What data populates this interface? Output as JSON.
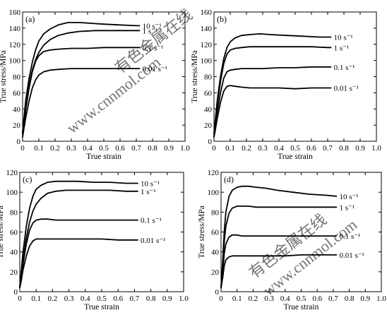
{
  "chart_data": [
    {
      "type": "line",
      "panel_label": "(a)",
      "xlabel": "True strain",
      "ylabel": "True stress/MPa",
      "xlim": [
        0,
        1.0
      ],
      "ylim": [
        0,
        160
      ],
      "xticks": [
        "0",
        "0.1",
        "0.2",
        "0.3",
        "0.4",
        "0.5",
        "0.6",
        "0.7",
        "0.8",
        "0.9",
        "1.0"
      ],
      "yticks": [
        "0",
        "20",
        "40",
        "60",
        "80",
        "100",
        "120",
        "140",
        "160"
      ],
      "series": [
        {
          "name": "10 s⁻¹",
          "x": [
            0,
            0.01,
            0.02,
            0.04,
            0.06,
            0.08,
            0.1,
            0.13,
            0.17,
            0.22,
            0.28,
            0.35,
            0.42,
            0.5,
            0.6,
            0.7,
            0.72
          ],
          "y": [
            12,
            32,
            52,
            78,
            98,
            113,
            124,
            133,
            139,
            144,
            147,
            147,
            146,
            145,
            144,
            143,
            143
          ]
        },
        {
          "name": "1 s⁻¹",
          "x": [
            0,
            0.01,
            0.02,
            0.04,
            0.06,
            0.08,
            0.1,
            0.13,
            0.17,
            0.22,
            0.28,
            0.35,
            0.45,
            0.55,
            0.65,
            0.72
          ],
          "y": [
            10,
            28,
            46,
            70,
            88,
            101,
            110,
            119,
            126,
            131,
            134,
            136,
            137,
            137,
            137,
            137
          ]
        },
        {
          "name": "0.1 s⁻¹",
          "x": [
            0,
            0.01,
            0.02,
            0.04,
            0.06,
            0.08,
            0.1,
            0.13,
            0.17,
            0.22,
            0.3,
            0.4,
            0.5,
            0.6,
            0.7,
            0.72
          ],
          "y": [
            8,
            24,
            40,
            66,
            86,
            99,
            106,
            111,
            113,
            114,
            115,
            115,
            116,
            116,
            116,
            116
          ]
        },
        {
          "name": "0.01 s⁻¹",
          "x": [
            0,
            0.01,
            0.02,
            0.04,
            0.06,
            0.08,
            0.1,
            0.13,
            0.17,
            0.22,
            0.3,
            0.4,
            0.5,
            0.6,
            0.7,
            0.72
          ],
          "y": [
            5,
            18,
            30,
            50,
            66,
            76,
            82,
            86,
            88,
            89,
            90,
            90,
            90,
            90,
            90,
            90
          ]
        }
      ]
    },
    {
      "type": "line",
      "panel_label": "(b)",
      "xlabel": "True strain",
      "ylabel": "True stress/MPa",
      "xlim": [
        0,
        1.0
      ],
      "ylim": [
        0,
        160
      ],
      "xticks": [
        "0",
        "0.1",
        "0.2",
        "0.3",
        "0.4",
        "0.5",
        "0.6",
        "0.7",
        "0.8",
        "0.9",
        "1.0"
      ],
      "yticks": [
        "0",
        "20",
        "40",
        "60",
        "80",
        "100",
        "120",
        "140",
        "160"
      ],
      "series": [
        {
          "name": "10 s⁻¹",
          "x": [
            0,
            0.01,
            0.02,
            0.04,
            0.06,
            0.08,
            0.1,
            0.13,
            0.17,
            0.22,
            0.28,
            0.35,
            0.45,
            0.55,
            0.65,
            0.72
          ],
          "y": [
            10,
            30,
            50,
            80,
            102,
            116,
            123,
            128,
            131,
            132,
            133,
            132,
            131,
            130,
            129,
            129
          ]
        },
        {
          "name": "1 s⁻¹",
          "x": [
            0,
            0.01,
            0.02,
            0.04,
            0.06,
            0.08,
            0.1,
            0.13,
            0.17,
            0.22,
            0.3,
            0.4,
            0.5,
            0.6,
            0.7,
            0.72
          ],
          "y": [
            8,
            26,
            46,
            74,
            96,
            108,
            113,
            115,
            116,
            117,
            117,
            117,
            117,
            117,
            116,
            116
          ]
        },
        {
          "name": "0.1 s⁻¹",
          "x": [
            0,
            0.01,
            0.02,
            0.04,
            0.06,
            0.08,
            0.1,
            0.13,
            0.17,
            0.22,
            0.3,
            0.4,
            0.5,
            0.6,
            0.7,
            0.72
          ],
          "y": [
            6,
            20,
            36,
            60,
            78,
            86,
            88,
            89,
            90,
            90,
            90,
            91,
            91,
            92,
            92,
            92
          ]
        },
        {
          "name": "0.01 s⁻¹",
          "x": [
            0,
            0.01,
            0.02,
            0.04,
            0.06,
            0.08,
            0.1,
            0.13,
            0.17,
            0.22,
            0.3,
            0.4,
            0.5,
            0.6,
            0.7,
            0.72
          ],
          "y": [
            5,
            16,
            28,
            48,
            62,
            68,
            69,
            68,
            67,
            66,
            66,
            66,
            65,
            66,
            66,
            66
          ]
        }
      ]
    },
    {
      "type": "line",
      "panel_label": "(c)",
      "xlabel": "True strain",
      "ylabel": "True stress/MPa",
      "xlim": [
        0,
        1.0
      ],
      "ylim": [
        0,
        120
      ],
      "xticks": [
        "0",
        "0.1",
        "0.2",
        "0.3",
        "0.4",
        "0.5",
        "0.6",
        "0.7",
        "0.8",
        "0.9",
        "1.0"
      ],
      "yticks": [
        "0",
        "20",
        "40",
        "60",
        "80",
        "100",
        "120"
      ],
      "series": [
        {
          "name": "10 s⁻¹",
          "x": [
            0,
            0.01,
            0.02,
            0.04,
            0.06,
            0.08,
            0.1,
            0.13,
            0.17,
            0.22,
            0.28,
            0.35,
            0.45,
            0.55,
            0.65,
            0.72
          ],
          "y": [
            5,
            22,
            40,
            66,
            84,
            96,
            103,
            107,
            110,
            111,
            111,
            111,
            110,
            110,
            109,
            109
          ]
        },
        {
          "name": "1 s⁻¹",
          "x": [
            0,
            0.01,
            0.02,
            0.04,
            0.06,
            0.08,
            0.1,
            0.13,
            0.17,
            0.22,
            0.28,
            0.35,
            0.45,
            0.55,
            0.65,
            0.72
          ],
          "y": [
            5,
            18,
            32,
            54,
            70,
            81,
            88,
            94,
            99,
            101,
            102,
            102,
            102,
            102,
            101,
            101
          ]
        },
        {
          "name": "0.1 s⁻¹",
          "x": [
            0,
            0.01,
            0.02,
            0.04,
            0.06,
            0.08,
            0.1,
            0.13,
            0.17,
            0.22,
            0.3,
            0.4,
            0.5,
            0.6,
            0.7,
            0.72
          ],
          "y": [
            4,
            15,
            28,
            48,
            62,
            69,
            72,
            73,
            73,
            72,
            72,
            72,
            72,
            72,
            72,
            72
          ]
        },
        {
          "name": "0.01 s⁻¹",
          "x": [
            0,
            0.01,
            0.02,
            0.04,
            0.06,
            0.08,
            0.1,
            0.13,
            0.17,
            0.22,
            0.3,
            0.4,
            0.5,
            0.6,
            0.7,
            0.72
          ],
          "y": [
            4,
            12,
            22,
            36,
            46,
            51,
            53,
            53,
            53,
            53,
            53,
            53,
            53,
            52,
            52,
            52
          ]
        }
      ]
    },
    {
      "type": "line",
      "panel_label": "(d)",
      "xlabel": "True strain",
      "ylabel": "True stress/MPa",
      "xlim": [
        0,
        1.0
      ],
      "ylim": [
        0,
        120
      ],
      "xticks": [
        "0",
        "0.1",
        "0.2",
        "0.3",
        "0.4",
        "0.5",
        "0.6",
        "0.7",
        "0.8",
        "0.9",
        "1.0"
      ],
      "yticks": [
        "0",
        "20",
        "40",
        "60",
        "80",
        "100",
        "120"
      ],
      "series": [
        {
          "name": "10 s⁻¹",
          "x": [
            0,
            0.01,
            0.02,
            0.03,
            0.05,
            0.07,
            0.1,
            0.13,
            0.17,
            0.22,
            0.28,
            0.35,
            0.45,
            0.55,
            0.65,
            0.72
          ],
          "y": [
            5,
            30,
            60,
            80,
            96,
            102,
            105,
            106,
            106,
            105,
            104,
            102,
            100,
            98,
            97,
            96
          ]
        },
        {
          "name": "1 s⁻¹",
          "x": [
            0,
            0.01,
            0.02,
            0.03,
            0.05,
            0.07,
            0.1,
            0.13,
            0.17,
            0.22,
            0.3,
            0.4,
            0.5,
            0.6,
            0.7,
            0.72
          ],
          "y": [
            4,
            26,
            50,
            66,
            79,
            84,
            86,
            86,
            86,
            85,
            85,
            85,
            85,
            85,
            85,
            85
          ]
        },
        {
          "name": "0.1 s⁻¹",
          "x": [
            0,
            0.01,
            0.02,
            0.03,
            0.05,
            0.07,
            0.1,
            0.13,
            0.17,
            0.22,
            0.3,
            0.4,
            0.5,
            0.6,
            0.7,
            0.72
          ],
          "y": [
            4,
            20,
            38,
            48,
            55,
            57,
            57,
            56,
            56,
            56,
            56,
            56,
            56,
            56,
            56,
            56
          ]
        },
        {
          "name": "0.01 s⁻¹",
          "x": [
            0,
            0.01,
            0.02,
            0.03,
            0.05,
            0.07,
            0.1,
            0.13,
            0.17,
            0.22,
            0.3,
            0.4,
            0.5,
            0.6,
            0.7,
            0.72
          ],
          "y": [
            4,
            14,
            26,
            32,
            35,
            36,
            36,
            36,
            36,
            36,
            36,
            36,
            37,
            37,
            37,
            37
          ]
        }
      ]
    }
  ],
  "watermark": {
    "text_cn": "有色金属在线",
    "text_url": "www.cnnmol.com"
  }
}
